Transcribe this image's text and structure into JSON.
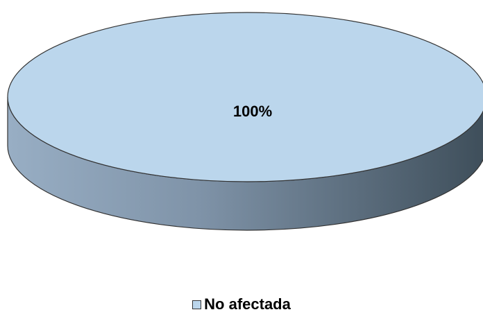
{
  "chart_data": {
    "type": "pie",
    "title": "",
    "categories": [
      "No afectada"
    ],
    "values": [
      100
    ],
    "labels": [
      "100%"
    ],
    "colors": {
      "top": "#BBD6EC",
      "side_light": "#98AEC4",
      "side_dark": "#3E4E5A",
      "edge": "#333333"
    },
    "legend": {
      "placement": "bottom",
      "entries": [
        {
          "name": "No afectada",
          "color": "#BBD6EC"
        }
      ]
    }
  }
}
